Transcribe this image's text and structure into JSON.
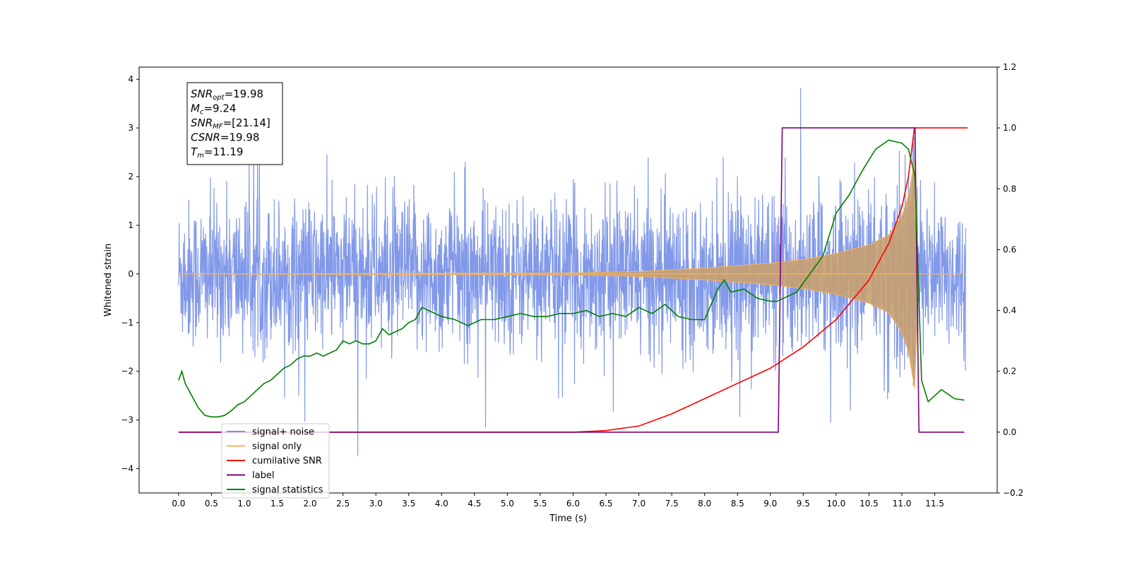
{
  "chart_data": {
    "type": "line",
    "title": "",
    "xlabel": "Time (s)",
    "ylabel": "Whitened strain",
    "ylabel_right": "",
    "xlim": [
      -0.6,
      12.45
    ],
    "ylim": [
      -4.5,
      4.25
    ],
    "ylim_right": [
      -0.2,
      1.2
    ],
    "x_ticks": [
      "0.0",
      "0.5",
      "1.0",
      "1.5",
      "2.0",
      "2.5",
      "3.0",
      "3.5",
      "4.0",
      "4.5",
      "5.0",
      "5.5",
      "6.0",
      "6.5",
      "7.0",
      "7.5",
      "8.0",
      "8.5",
      "9.0",
      "9.5",
      "10.0",
      "10.5",
      "11.0",
      "11.5"
    ],
    "y_ticks": [
      "4",
      "3",
      "2",
      "1",
      "0",
      "−1",
      "−2",
      "−3",
      "−4"
    ],
    "y_ticks_right": [
      "1.2",
      "1.0",
      "0.8",
      "0.6",
      "0.4",
      "0.2",
      "0.0",
      "−0.2"
    ],
    "grid": false,
    "legend_position": "lower-left",
    "annotation": {
      "snr_opt": {
        "base": "SNR",
        "sub": "opt",
        "value": "=19.98"
      },
      "mc": {
        "base": "M",
        "sub": "c",
        "value": "=9.24"
      },
      "snr_mf": {
        "base": "SNR",
        "sub": "MF",
        "value": "=[21.14]"
      },
      "csnr": {
        "base": "CSNR",
        "value": "=19.98"
      },
      "tm": {
        "base": "T",
        "sub": "m",
        "value": "=11.19"
      }
    },
    "series": [
      {
        "name": "signal+ noise",
        "color": "#7b93e8",
        "axis": "left",
        "description": "noisy whitened strain, roughly ±2 with spikes to ±4"
      },
      {
        "name": "signal only",
        "color": "#f5b45a",
        "axis": "left",
        "envelope": {
          "t": [
            0,
            6.0,
            7.0,
            8.0,
            9.0,
            9.5,
            10.0,
            10.5,
            10.8,
            11.0,
            11.1,
            11.2,
            11.25
          ],
          "amp": [
            0.0,
            0.02,
            0.05,
            0.12,
            0.22,
            0.3,
            0.42,
            0.6,
            0.8,
            1.2,
            1.6,
            2.4,
            0.0
          ]
        }
      },
      {
        "name": "cumilative SNR",
        "color": "#ff0000",
        "axis": "right",
        "x": [
          0,
          6.0,
          6.5,
          7.0,
          7.5,
          8.0,
          8.5,
          9.0,
          9.5,
          10.0,
          10.5,
          10.8,
          11.0,
          11.1,
          11.19,
          11.25,
          12.0
        ],
        "y": [
          0.0,
          0.0,
          0.005,
          0.02,
          0.06,
          0.11,
          0.16,
          0.21,
          0.28,
          0.37,
          0.5,
          0.62,
          0.74,
          0.84,
          1.0,
          1.0,
          1.0
        ]
      },
      {
        "name": "label",
        "color": "#800080",
        "axis": "right",
        "x": [
          0.0,
          9.12,
          9.18,
          11.2,
          11.26,
          11.95
        ],
        "y": [
          0.0,
          0.0,
          1.0,
          1.0,
          0.0,
          0.0
        ]
      },
      {
        "name": "signal statistics",
        "color": "#008000",
        "axis": "right",
        "x": [
          0.0,
          0.05,
          0.1,
          0.2,
          0.3,
          0.4,
          0.5,
          0.6,
          0.7,
          0.8,
          0.9,
          1.0,
          1.1,
          1.2,
          1.3,
          1.4,
          1.5,
          1.6,
          1.7,
          1.8,
          1.9,
          2.0,
          2.1,
          2.2,
          2.3,
          2.4,
          2.5,
          2.6,
          2.7,
          2.8,
          2.9,
          3.0,
          3.1,
          3.2,
          3.3,
          3.4,
          3.5,
          3.6,
          3.7,
          3.8,
          3.9,
          4.0,
          4.2,
          4.4,
          4.6,
          4.8,
          5.0,
          5.2,
          5.4,
          5.6,
          5.8,
          6.0,
          6.2,
          6.4,
          6.6,
          6.8,
          7.0,
          7.2,
          7.4,
          7.6,
          7.8,
          8.0,
          8.2,
          8.3,
          8.4,
          8.6,
          8.8,
          9.0,
          9.1,
          9.2,
          9.4,
          9.6,
          9.8,
          10.0,
          10.2,
          10.4,
          10.6,
          10.8,
          11.0,
          11.1,
          11.2,
          11.3,
          11.4,
          11.6,
          11.8,
          11.95
        ],
        "y": [
          0.17,
          0.2,
          0.16,
          0.12,
          0.08,
          0.055,
          0.05,
          0.05,
          0.055,
          0.07,
          0.09,
          0.1,
          0.12,
          0.14,
          0.16,
          0.17,
          0.19,
          0.21,
          0.22,
          0.24,
          0.25,
          0.25,
          0.26,
          0.25,
          0.26,
          0.27,
          0.3,
          0.29,
          0.3,
          0.29,
          0.29,
          0.3,
          0.34,
          0.32,
          0.33,
          0.34,
          0.36,
          0.37,
          0.41,
          0.4,
          0.39,
          0.38,
          0.37,
          0.35,
          0.37,
          0.37,
          0.38,
          0.39,
          0.38,
          0.38,
          0.39,
          0.39,
          0.4,
          0.38,
          0.39,
          0.38,
          0.41,
          0.39,
          0.42,
          0.38,
          0.37,
          0.37,
          0.47,
          0.5,
          0.46,
          0.47,
          0.44,
          0.43,
          0.43,
          0.44,
          0.46,
          0.52,
          0.58,
          0.72,
          0.78,
          0.86,
          0.93,
          0.96,
          0.95,
          0.93,
          0.84,
          0.17,
          0.1,
          0.14,
          0.11,
          0.105
        ]
      }
    ]
  }
}
